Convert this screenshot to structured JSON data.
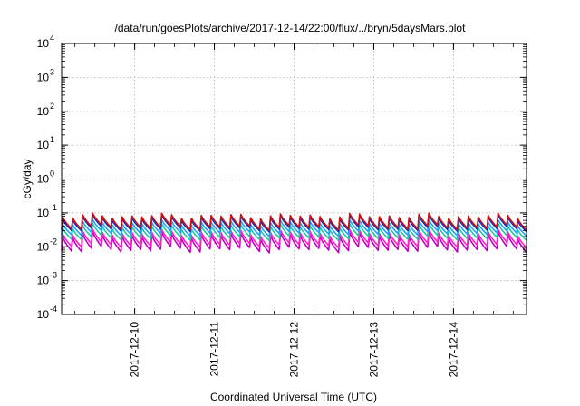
{
  "chart_data": {
    "type": "line",
    "title": "/data/run/goesPlots/archive/2017-12-14/22:00/flux/../bryn/5daysMars.plot",
    "xlabel": "Coordinated Universal Time (UTC)",
    "ylabel": "cGy/day",
    "yscale": "log",
    "ylim": [
      0.0001,
      10000
    ],
    "y_ticks": [
      {
        "base": "10",
        "exp": "-4"
      },
      {
        "base": "10",
        "exp": "-3"
      },
      {
        "base": "10",
        "exp": "-2"
      },
      {
        "base": "10",
        "exp": "-1"
      },
      {
        "base": "10",
        "exp": "0"
      },
      {
        "base": "10",
        "exp": "1"
      },
      {
        "base": "10",
        "exp": "2"
      },
      {
        "base": "10",
        "exp": "3"
      },
      {
        "base": "10",
        "exp": "4"
      }
    ],
    "xlim": [
      "2017-12-09T02:00",
      "2017-12-14T22:00"
    ],
    "x_ticks": [
      "2017-12-10",
      "2017-12-11",
      "2017-12-12",
      "2017-12-13",
      "2017-12-14"
    ],
    "grid": true,
    "pattern": "sawtooth, approx. 8 cycles per day",
    "series": [
      {
        "color": "#d01010",
        "peak_range": [
          0.065,
          0.1
        ],
        "trough_range": [
          0.03,
          0.045
        ]
      },
      {
        "color": "#1030c0",
        "peak_range": [
          0.055,
          0.09
        ],
        "trough_range": [
          0.027,
          0.04
        ]
      },
      {
        "color": "#20a0ff",
        "peak_range": [
          0.04,
          0.065
        ],
        "trough_range": [
          0.02,
          0.03
        ]
      },
      {
        "color": "#20c8a0",
        "peak_range": [
          0.03,
          0.05
        ],
        "trough_range": [
          0.015,
          0.022
        ]
      },
      {
        "color": "#ff20c8",
        "peak_range": [
          0.02,
          0.034
        ],
        "trough_range": [
          0.009,
          0.014
        ]
      },
      {
        "color": "#c000c0",
        "peak_range": [
          0.016,
          0.028
        ],
        "trough_range": [
          0.0065,
          0.0105
        ]
      }
    ]
  }
}
